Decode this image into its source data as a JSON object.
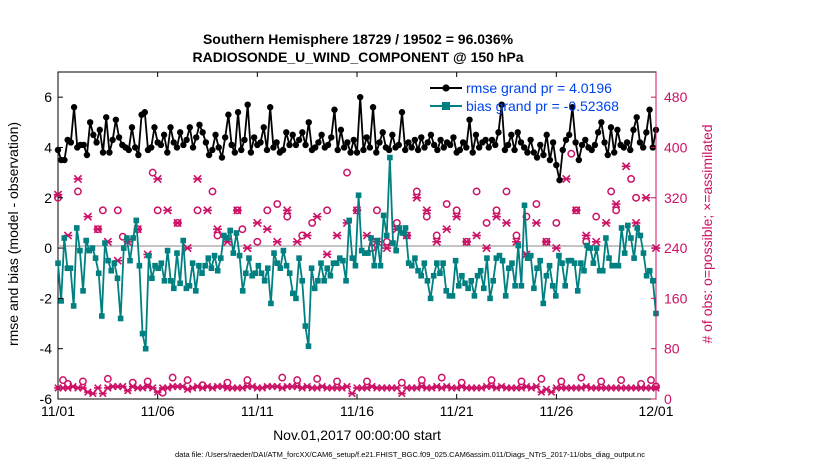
{
  "title": {
    "line1": "Southern Hemisphere 18729 / 19502 = 96.036%",
    "line2": "RADIOSONDE_U_WIND_COMPONENT @ 150 hPa"
  },
  "footer_note": "data file: /Users/raeder/DAI/ATM_forcXX/CAM6_setup/f.e21.FHIST_BGC.f09_025.CAM6assim.011/Diags_NTrS_2017-11/obs_diag_output.nc",
  "colors": {
    "rmse": "#000000",
    "bias": "#008080",
    "obs": "#cc1166",
    "zero_line": "#b0b0b0"
  },
  "chart_data": {
    "type": "line",
    "xlabel": "Nov.01,2017 00:00:00 start",
    "ylabel": "rmse and bias (model - observation)",
    "y2label": "# of obs: o=possible; ×=assimilated",
    "xlim": [
      0,
      30
    ],
    "ylim": [
      -6,
      7
    ],
    "y2lim": [
      0,
      520
    ],
    "x_ticks": [
      0,
      5,
      10,
      15,
      20,
      25,
      30
    ],
    "x_tick_labels": [
      "11/01",
      "11/06",
      "11/11",
      "11/16",
      "11/21",
      "11/26",
      "12/01"
    ],
    "y_ticks": [
      -6,
      -4,
      -2,
      0,
      2,
      4,
      6
    ],
    "y_tick_labels": [
      "-6",
      "-4",
      "-2",
      "0",
      "2",
      "4",
      "6"
    ],
    "y2_ticks": [
      0,
      80,
      160,
      240,
      320,
      400,
      480
    ],
    "y2_tick_labels": [
      "0",
      "80",
      "160",
      "240",
      "320",
      "400",
      "480"
    ],
    "step_days": 0.25,
    "legend_position": "top-right",
    "series": [
      {
        "name": "rmse grand pr = 4.0196",
        "axis": "left",
        "values": [
          3.9,
          3.5,
          3.5,
          4.3,
          4.2,
          5.6,
          4.0,
          4.1,
          4.1,
          3.7,
          5.0,
          4.5,
          4.2,
          4.7,
          3.8,
          5.2,
          3.8,
          4.3,
          5.1,
          4.4,
          4.1,
          4.0,
          3.9,
          4.8,
          4.0,
          3.7,
          5.3,
          5.4,
          3.9,
          4.0,
          4.8,
          4.2,
          4.1,
          4.5,
          3.8,
          4.8,
          4.2,
          4.0,
          4.6,
          4.1,
          4.3,
          4.8,
          4.0,
          4.4,
          4.9,
          4.6,
          4.2,
          3.7,
          3.9,
          4.5,
          4.0,
          3.6,
          4.4,
          5.3,
          4.1,
          3.8,
          5.4,
          3.9,
          4.3,
          5.7,
          3.8,
          4.4,
          4.1,
          4.2,
          4.8,
          3.9,
          5.6,
          4.0,
          4.2,
          3.8,
          3.9,
          4.6,
          4.1,
          4.5,
          4.1,
          4.3,
          4.6,
          4.1,
          5.0,
          3.9,
          4.0,
          4.2,
          4.5,
          4.0,
          4.1,
          4.4,
          5.5,
          3.9,
          4.7,
          4.0,
          4.2,
          3.8,
          4.3,
          3.8,
          6.0,
          3.9,
          4.4,
          4.0,
          5.6,
          3.8,
          4.2,
          4.6,
          4.0,
          3.9,
          4.5,
          4.0,
          4.1,
          5.4,
          3.9,
          4.2,
          4.0,
          4.3,
          3.9,
          4.4,
          4.0,
          4.2,
          4.5,
          4.1,
          3.9,
          4.3,
          4.0,
          4.2,
          4.1,
          4.4,
          3.8,
          3.9,
          4.2,
          4.0,
          5.1,
          3.8,
          4.5,
          4.0,
          4.2,
          4.3,
          4.0,
          4.3,
          4.1,
          4.6,
          5.7,
          3.9,
          4.1,
          4.5,
          3.9,
          4.6,
          4.2,
          4.0,
          3.8,
          4.3,
          3.8,
          3.6,
          4.1,
          3.7,
          4.5,
          3.5,
          4.2,
          3.3,
          2.7,
          3.9,
          4.3,
          4.5,
          5.6,
          4.2,
          3.5,
          4.1,
          4.3,
          4.0,
          3.9,
          4.1,
          4.6,
          5.0,
          4.2,
          3.7,
          4.8,
          3.8,
          4.7,
          4.1,
          4.0,
          4.2,
          3.9,
          4.7,
          5.2,
          4.2,
          4.0,
          4.6,
          5.5,
          4.0,
          4.7
        ],
        "markers": "filled-circle"
      },
      {
        "name": "bias grand pr = -0.52368",
        "axis": "left",
        "values": [
          -0.6,
          -2.1,
          0.4,
          -0.8,
          -0.8,
          -2.3,
          0.8,
          -0.1,
          -1.7,
          0.3,
          -0.1,
          0.0,
          -0.4,
          -1.0,
          -2.7,
          0.2,
          -0.5,
          -0.9,
          -0.6,
          -1.2,
          -2.8,
          0.0,
          0.4,
          -0.5,
          0.4,
          1.1,
          -0.7,
          -3.4,
          -4.0,
          -0.3,
          -1.2,
          -0.7,
          -0.8,
          -0.6,
          -1.3,
          -0.1,
          -1.3,
          -1.6,
          -0.2,
          -1.4,
          0.3,
          -1.6,
          -1.5,
          -0.6,
          -1.7,
          -0.7,
          -1.0,
          -0.7,
          -0.4,
          -0.8,
          -0.3,
          -0.9,
          -0.4,
          0.5,
          0.4,
          0.7,
          -0.2,
          0.6,
          -0.3,
          -1.7,
          -1.0,
          -0.4,
          -1.1,
          -1.0,
          -0.7,
          -1.0,
          -1.3,
          -0.8,
          -2.2,
          -0.2,
          -0.6,
          -0.8,
          -0.1,
          -0.7,
          -1.0,
          -1.8,
          -2.0,
          -0.4,
          -1.3,
          -3.1,
          -3.9,
          -0.8,
          -1.6,
          -1.3,
          -0.6,
          -1.3,
          -0.8,
          -1.1,
          -0.6,
          -0.6,
          -0.4,
          -0.5,
          -1.3,
          1.1,
          -0.4,
          -0.7,
          2.1,
          -0.1,
          -0.2,
          -0.2,
          0.4,
          -0.7,
          0.3,
          -0.7,
          1.3,
          0.5,
          3.6,
          0.2,
          -0.1,
          0.8,
          0.6,
          0.8,
          -0.6,
          -0.7,
          -0.4,
          -0.9,
          -1.1,
          -0.6,
          -1.3,
          -2.0,
          -1.1,
          -0.6,
          -1.0,
          -0.6,
          -1.7,
          -1.9,
          -1.9,
          -0.5,
          -1.5,
          -1.1,
          -1.4,
          -1.6,
          -1.3,
          -1.9,
          -1.1,
          -0.9,
          -1.6,
          -0.4,
          -2.0,
          -1.3,
          -0.4,
          -0.3,
          -0.5,
          -1.9,
          -0.8,
          -0.6,
          -1.5,
          0.1,
          -1.5,
          1.7,
          -0.4,
          -0.3,
          -1.6,
          -0.8,
          -0.5,
          -2.2,
          -1.1,
          -0.7,
          -1.5,
          -1.9,
          -0.3,
          -0.6,
          -1.5,
          -0.5,
          -0.5,
          -0.6,
          -1.7,
          -0.6,
          -0.9,
          0.1,
          0.0,
          -0.6,
          0.0,
          -0.9,
          -0.9,
          0.4,
          -0.4,
          -0.7,
          -0.7,
          -0.7,
          0.8,
          -0.2,
          0.9,
          0.4,
          -0.4,
          0.8,
          0.5,
          -0.2,
          -1.1,
          -0.9,
          -1.3,
          -2.6
        ]
      },
      {
        "name": "obs possible",
        "axis": "right",
        "values": [
          8,
          8,
          8,
          9,
          8,
          8,
          9,
          9,
          8,
          8,
          8,
          8,
          5,
          5,
          4,
          8,
          8,
          8,
          4,
          8,
          8,
          9,
          9,
          9,
          9,
          8,
          9,
          4,
          6,
          8,
          9,
          9,
          8,
          7,
          8,
          8,
          9,
          9,
          8,
          8,
          5,
          8,
          8,
          9,
          8,
          8,
          9,
          8,
          9,
          8,
          9,
          9,
          7,
          8,
          8,
          8,
          9,
          9,
          8,
          9,
          9,
          8,
          8,
          9,
          9,
          9,
          9,
          8,
          8,
          9,
          8,
          9,
          8,
          9,
          8,
          8,
          9,
          9,
          9,
          8,
          8,
          8,
          8,
          8,
          9,
          8,
          9,
          8,
          9,
          8,
          8,
          9,
          9,
          8,
          9,
          9,
          9,
          8,
          8,
          7,
          9,
          8,
          8,
          8,
          8,
          9,
          9,
          8,
          8,
          5,
          8,
          7,
          8,
          8,
          8,
          9,
          9,
          9,
          4,
          8,
          8,
          8,
          8,
          8,
          8,
          8,
          9,
          9,
          8,
          8,
          8,
          9,
          8,
          5,
          8,
          9,
          8,
          8,
          4,
          9,
          8,
          8,
          8,
          8,
          8,
          8,
          9,
          8,
          8,
          8,
          8,
          8,
          9,
          8,
          8,
          8,
          9,
          8,
          8,
          9,
          8,
          8,
          9,
          9,
          8,
          9,
          8,
          8,
          8,
          9,
          8,
          8,
          9,
          8,
          9,
          8,
          8,
          8,
          9,
          8,
          8,
          8,
          8,
          9,
          8,
          8,
          8,
          8,
          9,
          8,
          8,
          8,
          9,
          8,
          5,
          8,
          7,
          8,
          5,
          8,
          8,
          4,
          8,
          8,
          8,
          8,
          8,
          7,
          8,
          8,
          8,
          8,
          9,
          8,
          8,
          8,
          8,
          8,
          8,
          9,
          8,
          8,
          8,
          8,
          8,
          9,
          8,
          8,
          8,
          8,
          8,
          9,
          8,
          8,
          8,
          8,
          8,
          8,
          8,
          8,
          8,
          8,
          8,
          8,
          8,
          8,
          8,
          8,
          8,
          8,
          8,
          8,
          8,
          8,
          8,
          8,
          8,
          8,
          8,
          8,
          8,
          8,
          8,
          8
        ]
      }
    ],
    "obs_points": {
      "possible_circles": [
        [
          0.0,
          320
        ],
        [
          0.25,
          30
        ],
        [
          0.5,
          24
        ],
        [
          1.0,
          330
        ],
        [
          1.25,
          28
        ],
        [
          2.0,
          270
        ],
        [
          2.25,
          300
        ],
        [
          2.5,
          32
        ],
        [
          3.0,
          300
        ],
        [
          3.25,
          258
        ],
        [
          3.75,
          26
        ],
        [
          4.0,
          270
        ],
        [
          4.5,
          28
        ],
        [
          4.75,
          360
        ],
        [
          5.0,
          300
        ],
        [
          5.25,
          10
        ],
        [
          5.75,
          34
        ],
        [
          6.0,
          280
        ],
        [
          6.5,
          30
        ],
        [
          7.0,
          300
        ],
        [
          7.25,
          22
        ],
        [
          7.75,
          330
        ],
        [
          8.0,
          260
        ],
        [
          8.5,
          26
        ],
        [
          9.0,
          300
        ],
        [
          9.25,
          270
        ],
        [
          9.5,
          30
        ],
        [
          10.0,
          250
        ],
        [
          10.5,
          300
        ],
        [
          11.0,
          310
        ],
        [
          11.25,
          34
        ],
        [
          11.5,
          290
        ],
        [
          12.0,
          30
        ],
        [
          12.25,
          260
        ],
        [
          12.75,
          280
        ],
        [
          13.0,
          32
        ],
        [
          13.5,
          300
        ],
        [
          14.0,
          28
        ],
        [
          14.5,
          360
        ],
        [
          15.0,
          300
        ],
        [
          15.5,
          28
        ],
        [
          15.75,
          240
        ],
        [
          16.0,
          300
        ],
        [
          16.5,
          250
        ],
        [
          17.0,
          280
        ],
        [
          17.25,
          26
        ],
        [
          17.5,
          260
        ],
        [
          18.0,
          330
        ],
        [
          18.25,
          30
        ],
        [
          18.5,
          290
        ],
        [
          19.0,
          260
        ],
        [
          19.25,
          34
        ],
        [
          19.5,
          310
        ],
        [
          20.0,
          300
        ],
        [
          20.25,
          26
        ],
        [
          20.5,
          250
        ],
        [
          21.0,
          330
        ],
        [
          21.5,
          280
        ],
        [
          21.75,
          30
        ],
        [
          22.0,
          300
        ],
        [
          22.5,
          330
        ],
        [
          23.0,
          260
        ],
        [
          23.25,
          28
        ],
        [
          23.5,
          290
        ],
        [
          24.0,
          310
        ],
        [
          24.25,
          32
        ],
        [
          24.5,
          250
        ],
        [
          25.0,
          280
        ],
        [
          25.25,
          28
        ],
        [
          25.75,
          390
        ],
        [
          26.0,
          300
        ],
        [
          26.25,
          34
        ],
        [
          26.5,
          250
        ],
        [
          27.0,
          290
        ],
        [
          27.25,
          28
        ],
        [
          27.75,
          330
        ],
        [
          28.0,
          300
        ],
        [
          28.25,
          30
        ],
        [
          28.75,
          350
        ],
        [
          29.0,
          320
        ],
        [
          29.25,
          24
        ],
        [
          29.75,
          30
        ],
        [
          30.0,
          20
        ]
      ],
      "assimilated_crosses": [
        [
          0.0,
          325
        ],
        [
          0.5,
          260
        ],
        [
          1.0,
          350
        ],
        [
          1.5,
          290
        ],
        [
          2.0,
          270
        ],
        [
          2.5,
          250
        ],
        [
          3.0,
          220
        ],
        [
          3.5,
          250
        ],
        [
          4.0,
          270
        ],
        [
          4.5,
          230
        ],
        [
          5.0,
          350
        ],
        [
          5.5,
          300
        ],
        [
          6.0,
          280
        ],
        [
          6.5,
          240
        ],
        [
          7.0,
          350
        ],
        [
          7.5,
          300
        ],
        [
          8.0,
          270
        ],
        [
          8.5,
          250
        ],
        [
          9.0,
          300
        ],
        [
          9.5,
          240
        ],
        [
          10.0,
          280
        ],
        [
          10.5,
          270
        ],
        [
          11.0,
          250
        ],
        [
          11.5,
          300
        ],
        [
          12.0,
          250
        ],
        [
          12.5,
          260
        ],
        [
          13.0,
          290
        ],
        [
          13.5,
          230
        ],
        [
          14.0,
          260
        ],
        [
          14.5,
          280
        ],
        [
          15.0,
          300
        ],
        [
          15.5,
          260
        ],
        [
          16.0,
          250
        ],
        [
          16.5,
          240
        ],
        [
          17.0,
          270
        ],
        [
          17.5,
          260
        ],
        [
          18.0,
          320
        ],
        [
          18.5,
          300
        ],
        [
          19.0,
          250
        ],
        [
          19.5,
          270
        ],
        [
          20.0,
          290
        ],
        [
          20.5,
          250
        ],
        [
          21.0,
          260
        ],
        [
          21.5,
          240
        ],
        [
          22.0,
          290
        ],
        [
          22.5,
          280
        ],
        [
          23.0,
          250
        ],
        [
          23.5,
          230
        ],
        [
          24.0,
          280
        ],
        [
          24.5,
          250
        ],
        [
          25.0,
          240
        ],
        [
          25.5,
          350
        ],
        [
          26.0,
          300
        ],
        [
          26.5,
          260
        ],
        [
          27.0,
          250
        ],
        [
          27.5,
          280
        ],
        [
          28.0,
          310
        ],
        [
          28.5,
          370
        ],
        [
          29.0,
          280
        ],
        [
          29.5,
          320
        ],
        [
          30.0,
          240
        ]
      ]
    }
  }
}
